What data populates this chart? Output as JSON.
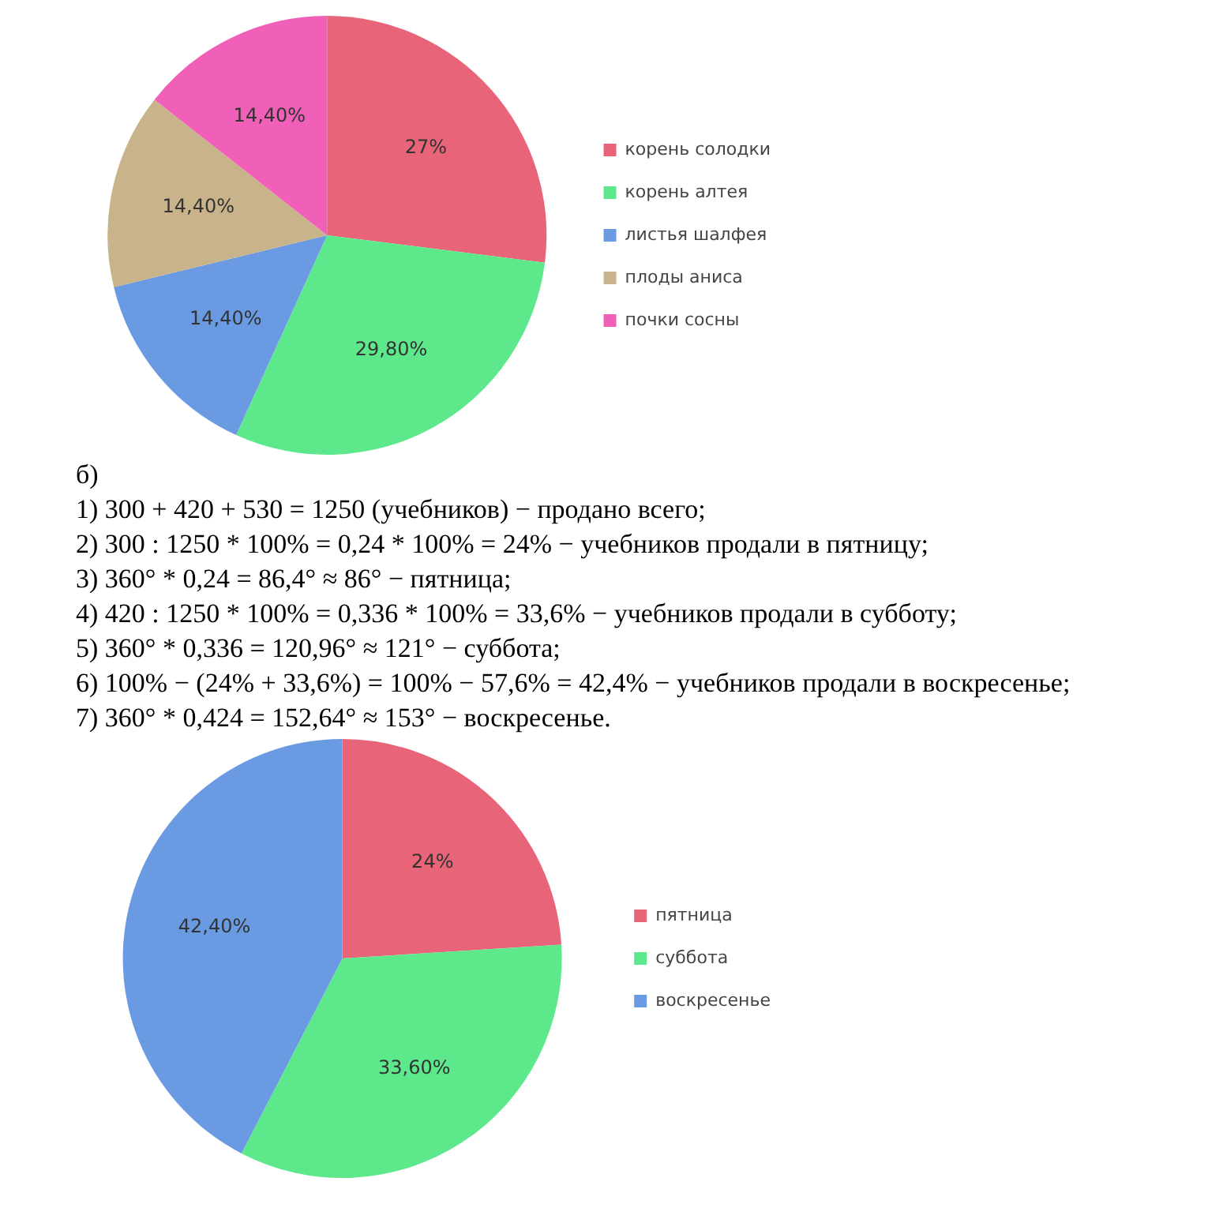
{
  "chart_data": [
    {
      "type": "pie",
      "categories": [
        "корень солодки",
        "корень алтея",
        "листья шалфея",
        "плоды аниса",
        "почки сосны"
      ],
      "values": [
        27,
        29.8,
        14.4,
        14.4,
        14.4
      ],
      "value_labels": [
        "27%",
        "29,80%",
        "14,40%",
        "14,40%",
        "14,40%"
      ],
      "colors": [
        "#e86478",
        "#5ee88c",
        "#6a9ae2",
        "#c9b38a",
        "#f060b8"
      ],
      "legend": "right"
    },
    {
      "type": "pie",
      "annotations": [
        "б)",
        "1) 300 + 420 + 530 = 1250 (учебников) − продано всего;",
        "2) 300 : 1250 * 100% = 0,24 * 100% = 24% − учебников продали в пятницу;",
        "3) 360° * 0,24 = 86,4° ≈ 86° − пятница;",
        "4) 420 : 1250 * 100% = 0,336 * 100% = 33,6% − учебников продали в субботу;",
        "5) 360° * 0,336 = 120,96° ≈ 121° − суббота;",
        "6) 100% − (24% + 33,6%) = 100% − 57,6% = 42,4% − учебников продали в воскресенье;",
        "7) 360° * 0,424 = 152,64° ≈ 153° − воскресенье."
      ],
      "categories": [
        "пятница",
        "суббота",
        "воскресенье"
      ],
      "values": [
        24,
        33.6,
        42.4
      ],
      "value_labels": [
        "24%",
        "33,60%",
        "42,40%"
      ],
      "colors": [
        "#e86478",
        "#5ee88c",
        "#6a9ae2"
      ],
      "legend": "right"
    }
  ]
}
